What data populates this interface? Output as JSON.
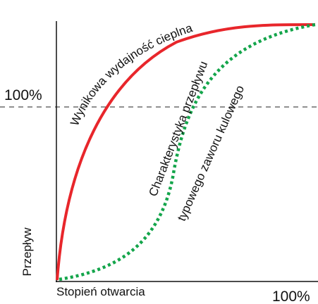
{
  "axes": {
    "y_label": "Przepływ",
    "x_label": "Stopień otwarcia",
    "y_max_label": "100%",
    "x_max_label": "100%"
  },
  "curves": [
    {
      "label": "Wynikowa wydajność cieplna"
    },
    {
      "label_lines": [
        "Charakterystyka przepływu",
        "typowego zaworu kulowego"
      ]
    }
  ]
}
